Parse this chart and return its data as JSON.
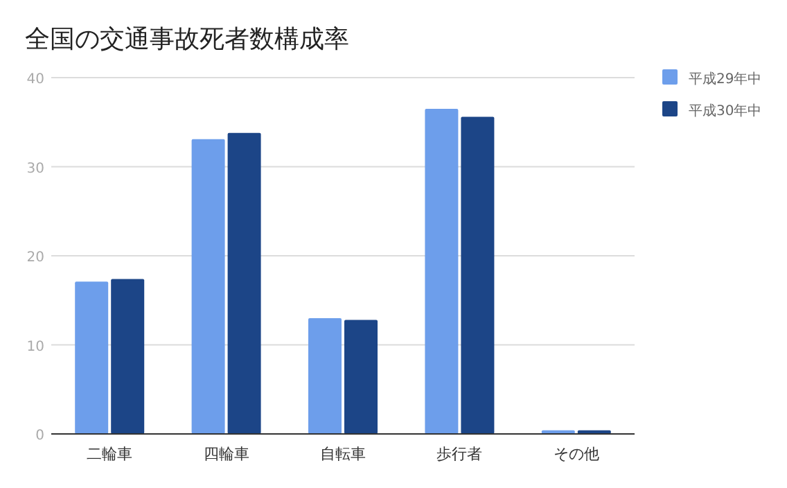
{
  "chart_data": {
    "type": "bar",
    "title": "全国の交通事故死者数構成率",
    "categories": [
      "二輪車",
      "四輪車",
      "自転車",
      "歩行者",
      "その他"
    ],
    "series": [
      {
        "name": "平成29年中",
        "color": "#6d9eeb",
        "values": [
          17.1,
          33.1,
          13.0,
          36.5,
          0.4
        ]
      },
      {
        "name": "平成30年中",
        "color": "#1c4587",
        "values": [
          17.4,
          33.8,
          12.8,
          35.6,
          0.4
        ]
      }
    ],
    "ylim": [
      0,
      40
    ],
    "yticks": [
      0,
      10,
      20,
      30,
      40
    ],
    "grid": "y",
    "legend": "right"
  }
}
